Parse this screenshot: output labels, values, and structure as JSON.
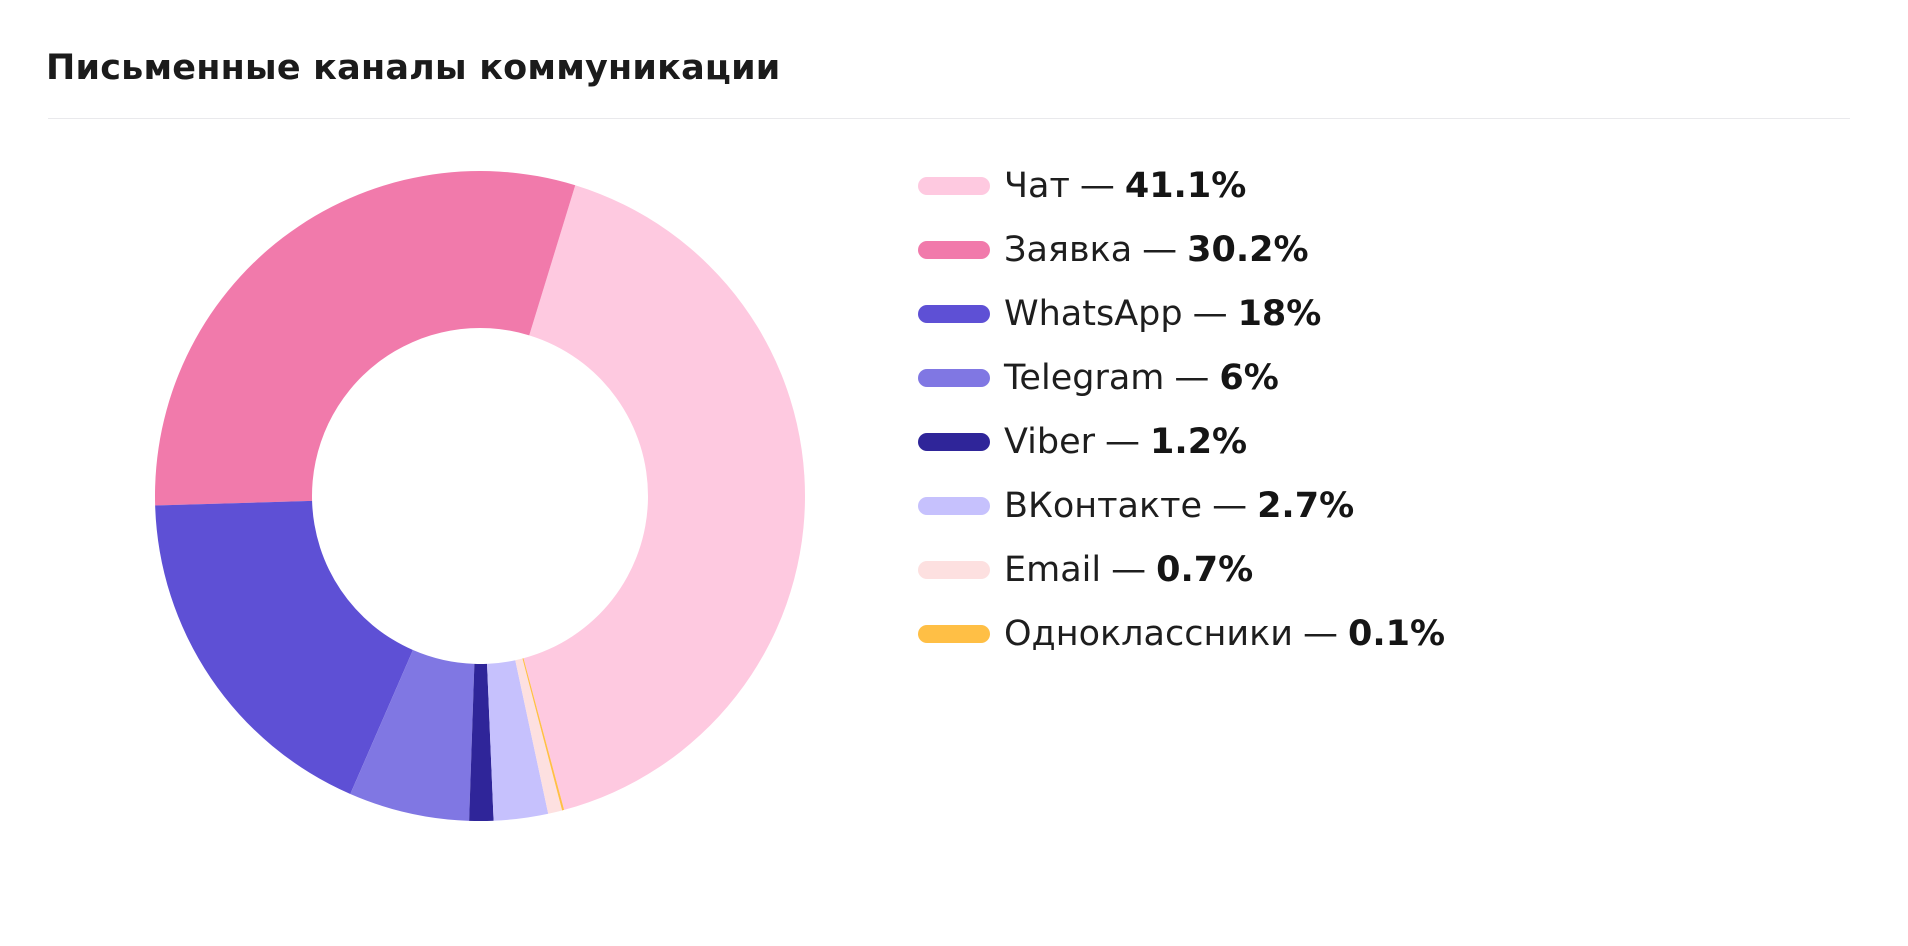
{
  "title": "Письменные каналы коммуникации",
  "legend_dash": "—",
  "chart_data": {
    "type": "pie",
    "donut": true,
    "title": "Письменные каналы коммуникации",
    "legend_position": "right",
    "slices": [
      {
        "label": "Чат",
        "value": 41.1,
        "value_text": "41.1%",
        "color": "#fec9e0"
      },
      {
        "label": "Заявка",
        "value": 30.2,
        "value_text": "30.2%",
        "color": "#f17aab"
      },
      {
        "label": "WhatsApp",
        "value": 18,
        "value_text": "18%",
        "color": "#5e50d5"
      },
      {
        "label": "Telegram",
        "value": 6,
        "value_text": "6%",
        "color": "#8077e3"
      },
      {
        "label": "Viber",
        "value": 1.2,
        "value_text": "1.2%",
        "color": "#2f2599"
      },
      {
        "label": "ВКонтакте",
        "value": 2.7,
        "value_text": "2.7%",
        "color": "#c6c1fd"
      },
      {
        "label": "Email",
        "value": 0.7,
        "value_text": "0.7%",
        "color": "#fde0e0"
      },
      {
        "label": "Одноклассники",
        "value": 0.1,
        "value_text": "0.1%",
        "color": "#ffbf45"
      }
    ]
  }
}
